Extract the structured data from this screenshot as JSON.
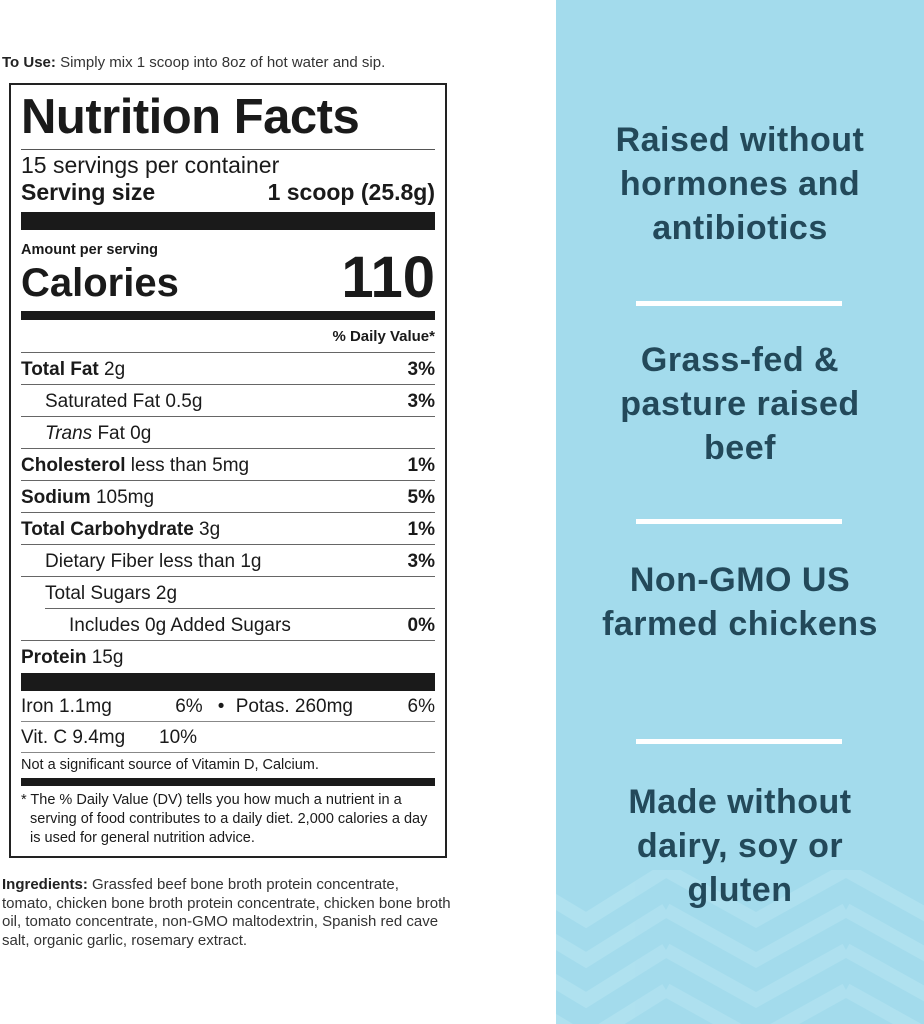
{
  "to_use": {
    "label": "To Use:",
    "text": " Simply mix 1 scoop into 8oz of hot water and sip."
  },
  "label": {
    "title": "Nutrition Facts",
    "servings": "15 servings per container",
    "serving_size_label": "Serving size",
    "serving_size_value": "1 scoop (25.8g)",
    "amount_per_serving": "Amount per serving",
    "calories_label": "Calories",
    "calories_value": "110",
    "dv_header": "% Daily Value*",
    "rows": [
      {
        "bold": "Total Fat",
        "text": " 2g",
        "dv": "3%"
      },
      {
        "bold": "",
        "text": "Saturated Fat 0.5g",
        "dv": "3%"
      },
      {
        "italic": "Trans",
        "text": " Fat 0g",
        "dv": ""
      },
      {
        "bold": "Cholesterol",
        "text": " less than 5mg",
        "dv": "1%"
      },
      {
        "bold": "Sodium",
        "text": " 105mg",
        "dv": "5%"
      },
      {
        "bold": "Total Carbohydrate",
        "text": " 3g",
        "dv": "1%"
      },
      {
        "bold": "",
        "text": "Dietary Fiber less than 1g",
        "dv": "3%"
      },
      {
        "bold": "",
        "text": "Total Sugars 2g",
        "dv": ""
      },
      {
        "bold": "",
        "text": "Includes 0g Added Sugars",
        "dv": "0%"
      },
      {
        "bold": "Protein",
        "text": " 15g",
        "dv": ""
      }
    ],
    "iron": "Iron 1.1mg",
    "iron_dv": "6%",
    "bullet": "•",
    "potas": "Potas. 260mg",
    "potas_dv": "6%",
    "vitc": "Vit. C 9.4mg",
    "vitc_dv": "10%",
    "not_significant": "Not a significant source of Vitamin D, Calcium.",
    "footnote": "* The % Daily Value (DV) tells you how much a nutrient in a serving of food contributes to a daily diet. 2,000 calories a day is used for general nutrition advice."
  },
  "ingredients": {
    "label": "Ingredients:",
    "text": " Grassfed beef bone broth protein concentrate, tomato, chicken bone broth protein concentrate, chicken bone broth oil, tomato concentrate, non-GMO maltodextrin, Spanish red cave salt, organic garlic, rosemary extract."
  },
  "claims": [
    "Raised without hormones and antibiotics",
    "Grass-fed & pasture raised beef",
    "Non-GMO US farmed chickens",
    "Made without dairy, soy or gluten"
  ],
  "colors": {
    "panel": "#a3dbec",
    "claim_text": "#23495a"
  }
}
